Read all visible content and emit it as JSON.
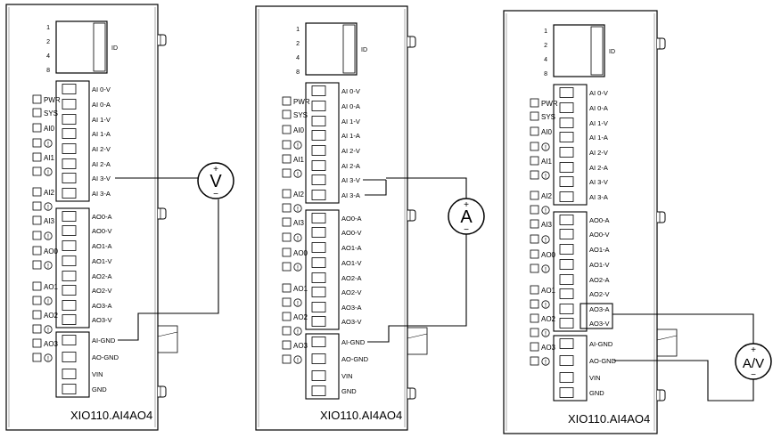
{
  "modules": [
    {
      "model": "XIO110.AI4AO4",
      "dip_labels": [
        "1",
        "2",
        "4",
        "8"
      ],
      "id_label": "ID",
      "leds": [
        "PWR",
        "SYS",
        "AI0",
        "!",
        "AI1",
        "!",
        "AI2",
        "!",
        "AI3",
        "!",
        "AO0",
        "!",
        "AO1",
        "!",
        "AO2",
        "!",
        "AO3",
        "!"
      ],
      "terminals_ai": [
        "AI 0-V",
        "AI 0-A",
        "AI 1-V",
        "AI 1-A",
        "AI 2-V",
        "AI 2-A",
        "AI 3-V",
        "AI 3-A"
      ],
      "terminals_ao": [
        "AO0-A",
        "AO0-V",
        "AO1-A",
        "AO1-V",
        "AO2-A",
        "AO2-V",
        "AO3-A",
        "AO3-V"
      ],
      "terminals_pwr": [
        "AI-GND",
        "AO-GND",
        "VIN",
        "GND"
      ],
      "meter": {
        "symbol": "V",
        "plus": "+",
        "minus": "−",
        "connection": "AI 3-V to AI-GND"
      }
    },
    {
      "model": "XIO110.AI4AO4",
      "dip_labels": [
        "1",
        "2",
        "4",
        "8"
      ],
      "id_label": "ID",
      "leds": [
        "PWR",
        "SYS",
        "AI0",
        "!",
        "AI1",
        "!",
        "AI2",
        "!",
        "AI3",
        "!",
        "AO0",
        "!",
        "AO1",
        "!",
        "AO2",
        "!",
        "AO3",
        "!"
      ],
      "terminals_ai": [
        "AI 0-V",
        "AI 0-A",
        "AI 1-V",
        "AI 1-A",
        "AI 2-V",
        "AI 2-A",
        "AI 3-V",
        "AI 3-A"
      ],
      "terminals_ao": [
        "AO0-A",
        "AO0-V",
        "AO1-A",
        "AO1-V",
        "AO2-A",
        "AO2-V",
        "AO3-A",
        "AO3-V"
      ],
      "terminals_pwr": [
        "AI-GND",
        "AO-GND",
        "VIN",
        "GND"
      ],
      "meter": {
        "symbol": "A",
        "plus": "+",
        "minus": "−",
        "connection": "AI 3-V + AI 3-A to AI-GND"
      }
    },
    {
      "model": "XIO110.AI4AO4",
      "dip_labels": [
        "1",
        "2",
        "4",
        "8"
      ],
      "id_label": "ID",
      "leds": [
        "PWR",
        "SYS",
        "AI0",
        "!",
        "AI1",
        "!",
        "AI2",
        "!",
        "AI3",
        "!",
        "AO0",
        "!",
        "AO1",
        "!",
        "AO2",
        "!",
        "AO3",
        "!"
      ],
      "terminals_ai": [
        "AI 0-V",
        "AI 0-A",
        "AI 1-V",
        "AI 1-A",
        "AI 2-V",
        "AI 2-A",
        "AI 3-V",
        "AI 3-A"
      ],
      "terminals_ao": [
        "AO0-A",
        "AO0-V",
        "AO1-A",
        "AO1-V",
        "AO2-A",
        "AO2-V",
        "AO3-A",
        "AO3-V"
      ],
      "terminals_pwr": [
        "AI-GND",
        "AO-GND",
        "VIN",
        "GND"
      ],
      "meter": {
        "symbol": "A/V",
        "plus": "+",
        "minus": "−",
        "connection": "AO3-A / AO3-V to AO-GND"
      }
    }
  ]
}
